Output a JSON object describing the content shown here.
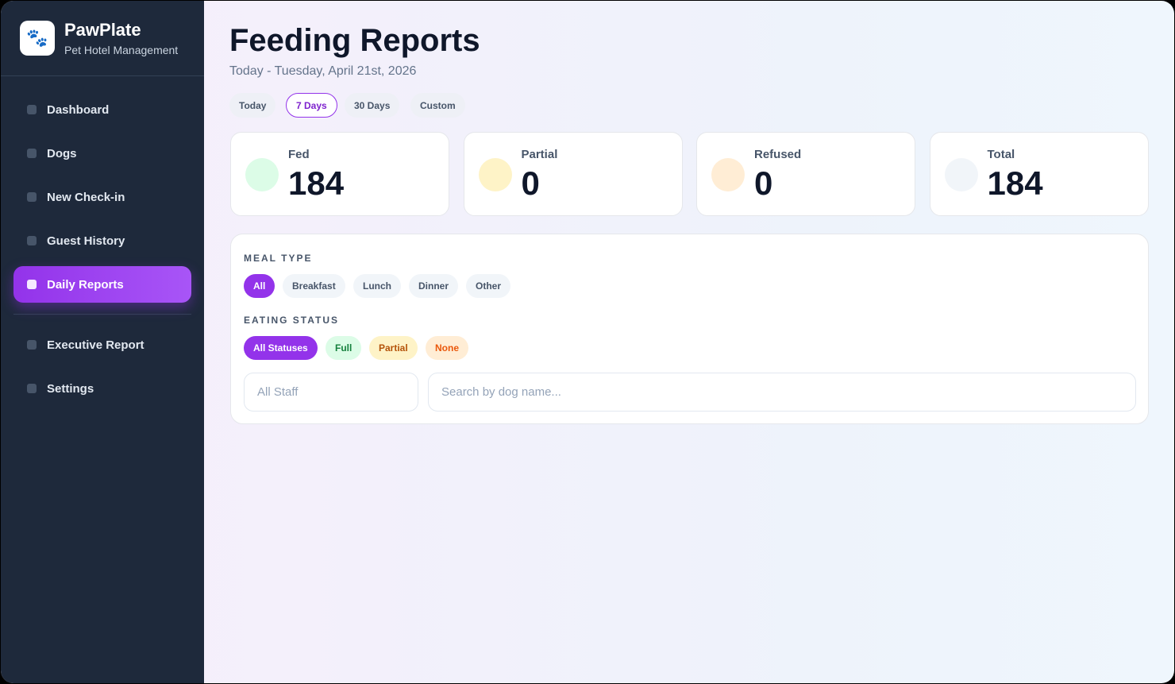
{
  "sidebar": {
    "icon": "🐾",
    "brand": "PawPlate",
    "tagline": "Pet Hotel Management",
    "nav": [
      {
        "label": "Dashboard",
        "active": false
      },
      {
        "label": "Dogs",
        "active": false
      },
      {
        "label": "New Check-in",
        "active": false
      },
      {
        "label": "Guest History",
        "active": false
      },
      {
        "label": "Daily Reports",
        "active": true
      }
    ],
    "nav_secondary": [
      {
        "label": "Executive Report",
        "active": false
      },
      {
        "label": "Settings",
        "active": false
      }
    ]
  },
  "header": {
    "title": "Feeding Reports",
    "subtitle": "Today - Tuesday, April 21st, 2026"
  },
  "range_tabs": [
    {
      "label": "Today",
      "active": false
    },
    {
      "label": "7 Days",
      "active": true
    },
    {
      "label": "30 Days",
      "active": false
    },
    {
      "label": "Custom",
      "active": false
    }
  ],
  "stats": [
    {
      "label": "Fed",
      "value": 184,
      "color": "#dcfce7"
    },
    {
      "label": "Partial",
      "value": 0,
      "color": "#fef3c7"
    },
    {
      "label": "Refused",
      "value": 0,
      "color": "#ffedd5"
    },
    {
      "label": "Total",
      "value": 184,
      "color": "#f1f5f9"
    }
  ],
  "filters": {
    "meal_type": {
      "label": "MEAL TYPE",
      "options": [
        {
          "label": "All",
          "active": true
        },
        {
          "label": "Breakfast",
          "active": false
        },
        {
          "label": "Lunch",
          "active": false
        },
        {
          "label": "Dinner",
          "active": false
        },
        {
          "label": "Other",
          "active": false
        }
      ]
    },
    "eating_status": {
      "label": "EATING STATUS",
      "options": [
        {
          "label": "All Statuses",
          "active": true,
          "bg": "#9333ea",
          "fg": "#ffffff"
        },
        {
          "label": "Full",
          "active": false,
          "bg": "#dcfce7",
          "fg": "#15803d"
        },
        {
          "label": "Partial",
          "active": false,
          "bg": "#fef3c7",
          "fg": "#b45309"
        },
        {
          "label": "None",
          "active": false,
          "bg": "#ffedd5",
          "fg": "#ea580c"
        }
      ]
    },
    "staff_placeholder": "All Staff",
    "search_placeholder": "Search by dog name..."
  }
}
